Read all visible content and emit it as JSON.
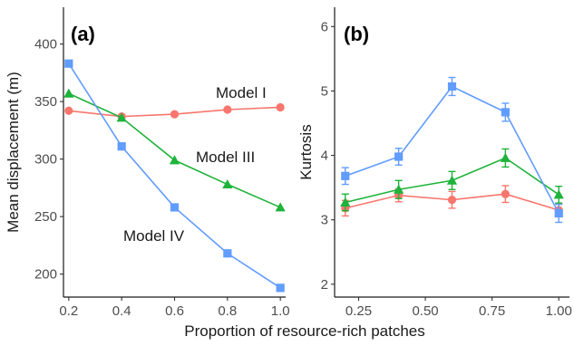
{
  "xlabel": "Proportion of resource-rich patches",
  "colors": {
    "model_I": "#F8766D",
    "model_III": "#1EB33A",
    "model_IV": "#619CFF"
  },
  "chart_data": [
    {
      "type": "line",
      "panel_label": "(a)",
      "ylabel": "Mean displacement (m)",
      "x": [
        0.2,
        0.4,
        0.6,
        0.8,
        1.0
      ],
      "xticks": [
        "0.2",
        "0.4",
        "0.6",
        "0.8",
        "1.0"
      ],
      "xlim": [
        0.18,
        1.02
      ],
      "yticks": [
        "200",
        "250",
        "300",
        "350",
        "400"
      ],
      "ylim": [
        180,
        432
      ],
      "grid": false,
      "series": [
        {
          "name": "Model I",
          "marker": "circle",
          "color": "#F8766D",
          "values": [
            342,
            337,
            339,
            343,
            345
          ]
        },
        {
          "name": "Model III",
          "marker": "triangle",
          "color": "#1EB33A",
          "values": [
            357,
            336,
            299,
            278,
            258
          ]
        },
        {
          "name": "Model IV",
          "marker": "square",
          "color": "#619CFF",
          "values": [
            383,
            311,
            258,
            218,
            188
          ]
        }
      ]
    },
    {
      "type": "line",
      "panel_label": "(b)",
      "ylabel": "Kurtosis",
      "x": [
        0.2,
        0.4,
        0.6,
        0.8,
        1.0
      ],
      "xticks": [
        "0.25",
        "0.50",
        "0.75",
        "1.00"
      ],
      "xlim": [
        0.16,
        1.04
      ],
      "yticks": [
        "2",
        "3",
        "4",
        "5",
        "6"
      ],
      "ylim": [
        1.8,
        6.3
      ],
      "grid": false,
      "error_bars": true,
      "series": [
        {
          "marker": "circle",
          "color": "#F8766D",
          "values": [
            3.18,
            3.38,
            3.31,
            3.4,
            3.15
          ],
          "errors": [
            0.12,
            0.1,
            0.13,
            0.13,
            0.1
          ]
        },
        {
          "marker": "triangle",
          "color": "#1EB33A",
          "values": [
            3.27,
            3.47,
            3.61,
            3.96,
            3.39
          ],
          "errors": [
            0.13,
            0.14,
            0.14,
            0.14,
            0.13
          ]
        },
        {
          "marker": "square",
          "color": "#619CFF",
          "values": [
            3.68,
            3.98,
            5.07,
            4.67,
            3.1
          ],
          "errors": [
            0.13,
            0.13,
            0.14,
            0.14,
            0.14
          ]
        }
      ]
    }
  ]
}
